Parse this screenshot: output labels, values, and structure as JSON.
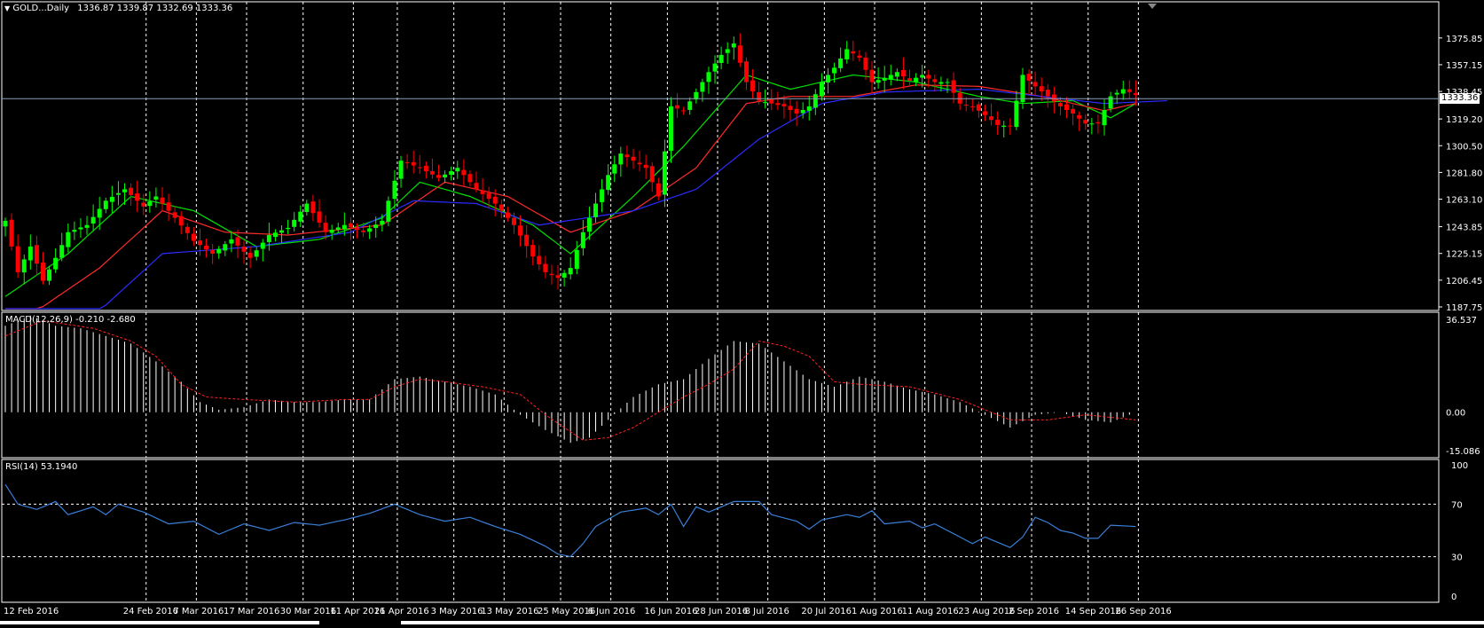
{
  "window": {
    "symbol_label": "GOLD...Daily",
    "ohlc_label": "1336.87 1339.87 1332.69 1333.36",
    "current_price_label": "1333.36"
  },
  "colors": {
    "bull": "#00ff00",
    "bear": "#ff0000",
    "ma_fast": "#00e000",
    "ma_mid": "#ff2a2a",
    "ma_slow": "#2b2bff",
    "grid": "#ffffff",
    "rsi_line": "#3a7fd8",
    "macd_signal": "#ff2020",
    "histogram": "#ffffff"
  },
  "chart_data": [
    {
      "type": "candlestick",
      "name": "price",
      "title": "GOLD...Daily",
      "ylim": [
        1187.75,
        1390.0
      ],
      "y_ticks": [
        "1375.85",
        "1357.15",
        "1338.45",
        "1319.20",
        "1300.50",
        "1281.80",
        "1263.10",
        "1243.85",
        "1225.15",
        "1206.45",
        "1187.75"
      ],
      "x_labels": [
        "12 Feb 2016",
        "24 Feb 2016",
        "7 Mar 2016",
        "17 Mar 2016",
        "30 Mar 2016",
        "11 Apr 2016",
        "21 Apr 2016",
        "3 May 2016",
        "13 May 2016",
        "25 May 2016",
        "6 Jun 2016",
        "16 Jun 2016",
        "28 Jun 2016",
        "8 Jul 2016",
        "20 Jul 2016",
        "1 Aug 2016",
        "11 Aug 2016",
        "23 Aug 2016",
        "2 Sep 2016",
        "14 Sep 2016",
        "26 Sep 2016"
      ],
      "close_anchors": [
        [
          0,
          1248
        ],
        [
          2,
          1212
        ],
        [
          4,
          1230
        ],
        [
          6,
          1206
        ],
        [
          8,
          1222
        ],
        [
          10,
          1240
        ],
        [
          13,
          1245
        ],
        [
          16,
          1262
        ],
        [
          19,
          1270
        ],
        [
          22,
          1258
        ],
        [
          24,
          1265
        ],
        [
          27,
          1250
        ],
        [
          30,
          1234
        ],
        [
          33,
          1225
        ],
        [
          36,
          1235
        ],
        [
          39,
          1222
        ],
        [
          42,
          1238
        ],
        [
          45,
          1243
        ],
        [
          48,
          1260
        ],
        [
          51,
          1240
        ],
        [
          54,
          1245
        ],
        [
          57,
          1240
        ],
        [
          60,
          1248
        ],
        [
          63,
          1290
        ],
        [
          66,
          1285
        ],
        [
          69,
          1278
        ],
        [
          72,
          1285
        ],
        [
          75,
          1270
        ],
        [
          78,
          1260
        ],
        [
          81,
          1245
        ],
        [
          84,
          1223
        ],
        [
          86,
          1212
        ],
        [
          88,
          1208
        ],
        [
          90,
          1215
        ],
        [
          92,
          1240
        ],
        [
          94,
          1260
        ],
        [
          96,
          1280
        ],
        [
          98,
          1295
        ],
        [
          100,
          1290
        ],
        [
          102,
          1285
        ],
        [
          104,
          1265
        ],
        [
          106,
          1328
        ],
        [
          108,
          1325
        ],
        [
          110,
          1338
        ],
        [
          112,
          1352
        ],
        [
          114,
          1364
        ],
        [
          116,
          1372
        ],
        [
          118,
          1345
        ],
        [
          120,
          1332
        ],
        [
          122,
          1330
        ],
        [
          124,
          1328
        ],
        [
          126,
          1323
        ],
        [
          128,
          1328
        ],
        [
          130,
          1345
        ],
        [
          132,
          1355
        ],
        [
          134,
          1368
        ],
        [
          136,
          1362
        ],
        [
          138,
          1345
        ],
        [
          140,
          1348
        ],
        [
          142,
          1352
        ],
        [
          144,
          1346
        ],
        [
          146,
          1350
        ],
        [
          148,
          1345
        ],
        [
          150,
          1345
        ],
        [
          152,
          1330
        ],
        [
          154,
          1328
        ],
        [
          156,
          1322
        ],
        [
          158,
          1315
        ],
        [
          160,
          1314
        ],
        [
          162,
          1350
        ],
        [
          164,
          1342
        ],
        [
          166,
          1335
        ],
        [
          168,
          1328
        ],
        [
          170,
          1323
        ],
        [
          172,
          1316
        ],
        [
          174,
          1316
        ],
        [
          176,
          1335
        ],
        [
          178,
          1340
        ],
        [
          180,
          1336
        ]
      ],
      "ma_fast_anchors": [
        [
          0,
          1195
        ],
        [
          10,
          1225
        ],
        [
          20,
          1265
        ],
        [
          30,
          1255
        ],
        [
          40,
          1230
        ],
        [
          50,
          1235
        ],
        [
          60,
          1250
        ],
        [
          66,
          1275
        ],
        [
          74,
          1265
        ],
        [
          84,
          1245
        ],
        [
          90,
          1225
        ],
        [
          100,
          1265
        ],
        [
          108,
          1300
        ],
        [
          118,
          1350
        ],
        [
          125,
          1340
        ],
        [
          135,
          1350
        ],
        [
          145,
          1345
        ],
        [
          155,
          1335
        ],
        [
          162,
          1330
        ],
        [
          170,
          1332
        ],
        [
          176,
          1320
        ],
        [
          180,
          1330
        ]
      ],
      "ma_mid_anchors": [
        [
          0,
          1170
        ],
        [
          15,
          1215
        ],
        [
          25,
          1255
        ],
        [
          35,
          1240
        ],
        [
          45,
          1238
        ],
        [
          60,
          1245
        ],
        [
          70,
          1275
        ],
        [
          80,
          1265
        ],
        [
          90,
          1240
        ],
        [
          100,
          1255
        ],
        [
          110,
          1285
        ],
        [
          118,
          1330
        ],
        [
          125,
          1335
        ],
        [
          135,
          1335
        ],
        [
          145,
          1343
        ],
        [
          155,
          1342
        ],
        [
          165,
          1335
        ],
        [
          175,
          1325
        ],
        [
          180,
          1330
        ]
      ],
      "ma_slow_anchors": [
        [
          0,
          1130
        ],
        [
          15,
          1185
        ],
        [
          25,
          1225
        ],
        [
          40,
          1230
        ],
        [
          55,
          1240
        ],
        [
          65,
          1262
        ],
        [
          75,
          1260
        ],
        [
          85,
          1245
        ],
        [
          100,
          1255
        ],
        [
          110,
          1270
        ],
        [
          120,
          1305
        ],
        [
          130,
          1330
        ],
        [
          140,
          1338
        ],
        [
          155,
          1340
        ],
        [
          165,
          1335
        ],
        [
          175,
          1330
        ],
        [
          185,
          1332
        ]
      ]
    },
    {
      "type": "bar",
      "name": "MACD(12,26,9)",
      "label": "MACD(12,26,9) -0.210 -2.680",
      "ylim": [
        -15.086,
        36.537
      ],
      "y_ticks": [
        "36.537",
        "0.00",
        "-15.086"
      ],
      "main_anchors": [
        [
          0,
          34
        ],
        [
          4,
          38
        ],
        [
          8,
          34
        ],
        [
          12,
          33
        ],
        [
          16,
          30
        ],
        [
          20,
          27
        ],
        [
          24,
          20
        ],
        [
          28,
          12
        ],
        [
          31,
          4
        ],
        [
          34,
          1
        ],
        [
          38,
          2
        ],
        [
          42,
          5
        ],
        [
          46,
          4
        ],
        [
          50,
          4
        ],
        [
          54,
          5
        ],
        [
          58,
          5
        ],
        [
          62,
          13
        ],
        [
          66,
          14
        ],
        [
          70,
          12
        ],
        [
          74,
          10
        ],
        [
          78,
          7
        ],
        [
          82,
          -1
        ],
        [
          86,
          -7
        ],
        [
          90,
          -12
        ],
        [
          93,
          -10
        ],
        [
          96,
          -3
        ],
        [
          100,
          6
        ],
        [
          104,
          11
        ],
        [
          108,
          13
        ],
        [
          112,
          21
        ],
        [
          116,
          28
        ],
        [
          120,
          27
        ],
        [
          124,
          20
        ],
        [
          128,
          13
        ],
        [
          132,
          10
        ],
        [
          136,
          14
        ],
        [
          140,
          12
        ],
        [
          144,
          9
        ],
        [
          148,
          7
        ],
        [
          152,
          4
        ],
        [
          156,
          -1
        ],
        [
          160,
          -6
        ],
        [
          164,
          -1
        ],
        [
          168,
          0
        ],
        [
          172,
          -3
        ],
        [
          176,
          -4
        ],
        [
          180,
          0
        ]
      ],
      "signal_anchors": [
        [
          0,
          30
        ],
        [
          6,
          36
        ],
        [
          14,
          33
        ],
        [
          20,
          28
        ],
        [
          24,
          22
        ],
        [
          28,
          11
        ],
        [
          32,
          6
        ],
        [
          38,
          5
        ],
        [
          46,
          4
        ],
        [
          54,
          5
        ],
        [
          58,
          5
        ],
        [
          62,
          10
        ],
        [
          66,
          13
        ],
        [
          70,
          12
        ],
        [
          76,
          10
        ],
        [
          82,
          7
        ],
        [
          86,
          -1
        ],
        [
          92,
          -11
        ],
        [
          96,
          -10
        ],
        [
          100,
          -6
        ],
        [
          104,
          0
        ],
        [
          108,
          6
        ],
        [
          112,
          11
        ],
        [
          116,
          17
        ],
        [
          120,
          28
        ],
        [
          124,
          26
        ],
        [
          128,
          22
        ],
        [
          132,
          12
        ],
        [
          136,
          11
        ],
        [
          144,
          10
        ],
        [
          152,
          5
        ],
        [
          156,
          1
        ],
        [
          160,
          -3
        ],
        [
          166,
          -3
        ],
        [
          172,
          -1
        ],
        [
          180,
          -3
        ]
      ]
    },
    {
      "type": "line",
      "name": "RSI(14)",
      "label": "RSI(14) 53.1940",
      "ylim": [
        0,
        100
      ],
      "y_ticks": [
        "100",
        "70",
        "30",
        "0"
      ],
      "levels": [
        70,
        30
      ],
      "anchors": [
        [
          0,
          85
        ],
        [
          2,
          70
        ],
        [
          5,
          66
        ],
        [
          8,
          72
        ],
        [
          10,
          62
        ],
        [
          14,
          68
        ],
        [
          16,
          62
        ],
        [
          18,
          70
        ],
        [
          22,
          64
        ],
        [
          26,
          55
        ],
        [
          30,
          57
        ],
        [
          34,
          47
        ],
        [
          38,
          55
        ],
        [
          42,
          50
        ],
        [
          46,
          56
        ],
        [
          50,
          54
        ],
        [
          54,
          58
        ],
        [
          58,
          63
        ],
        [
          62,
          70
        ],
        [
          66,
          62
        ],
        [
          70,
          57
        ],
        [
          74,
          60
        ],
        [
          78,
          53
        ],
        [
          82,
          47
        ],
        [
          86,
          38
        ],
        [
          88,
          32
        ],
        [
          90,
          30
        ],
        [
          92,
          40
        ],
        [
          94,
          53
        ],
        [
          98,
          64
        ],
        [
          102,
          67
        ],
        [
          104,
          62
        ],
        [
          106,
          70
        ],
        [
          108,
          53
        ],
        [
          110,
          68
        ],
        [
          112,
          64
        ],
        [
          116,
          72
        ],
        [
          120,
          72
        ],
        [
          122,
          62
        ],
        [
          126,
          57
        ],
        [
          128,
          51
        ],
        [
          130,
          58
        ],
        [
          134,
          62
        ],
        [
          136,
          60
        ],
        [
          138,
          65
        ],
        [
          140,
          55
        ],
        [
          144,
          57
        ],
        [
          146,
          52
        ],
        [
          148,
          55
        ],
        [
          152,
          45
        ],
        [
          154,
          40
        ],
        [
          156,
          45
        ],
        [
          158,
          41
        ],
        [
          160,
          37
        ],
        [
          162,
          45
        ],
        [
          164,
          60
        ],
        [
          166,
          56
        ],
        [
          168,
          50
        ],
        [
          170,
          48
        ],
        [
          172,
          44
        ],
        [
          174,
          44
        ],
        [
          176,
          54
        ],
        [
          180,
          53
        ]
      ]
    }
  ]
}
